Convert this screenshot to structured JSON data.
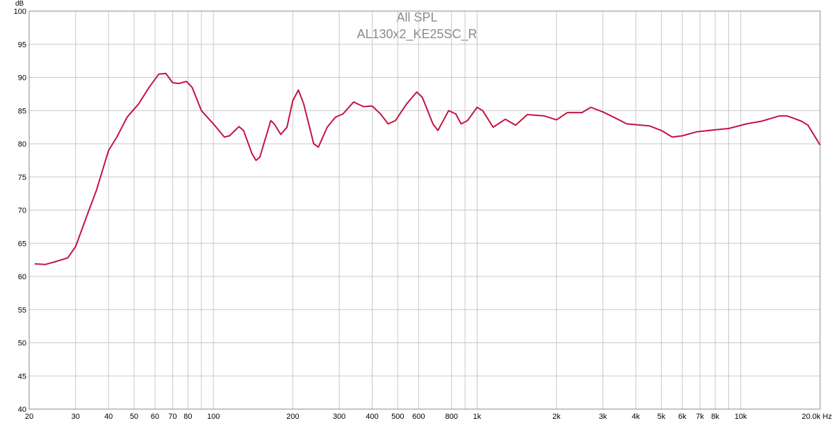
{
  "chart_data": {
    "type": "line",
    "title": "All SPL",
    "subtitle": "AL130x2_KE25SC_R",
    "y_label": "dB",
    "log_x": true,
    "grid": true,
    "xlim": [
      20,
      20000
    ],
    "ylim": [
      40,
      100
    ],
    "xticks": [
      20,
      30,
      40,
      50,
      60,
      70,
      80,
      {
        "value": 90,
        "label": null
      },
      100,
      200,
      300,
      400,
      500,
      600,
      800,
      {
        "value": 900,
        "label": null
      },
      {
        "value": 1000,
        "label": "1k"
      },
      {
        "value": 2000,
        "label": "2k"
      },
      {
        "value": 3000,
        "label": "3k"
      },
      {
        "value": 4000,
        "label": "4k"
      },
      {
        "value": 5000,
        "label": "5k"
      },
      {
        "value": 6000,
        "label": "6k"
      },
      {
        "value": 7000,
        "label": "7k"
      },
      {
        "value": 8000,
        "label": "8k"
      },
      {
        "value": 9000,
        "label": null
      },
      {
        "value": 10000,
        "label": "10k"
      },
      {
        "value": 20000,
        "label": "20.0k Hz"
      }
    ],
    "yticks": [
      40,
      45,
      50,
      55,
      60,
      65,
      70,
      75,
      80,
      85,
      90,
      95,
      100
    ],
    "series": [
      {
        "name": "AL130x2_KE25SC_R",
        "color": "#c4123f",
        "x": [
          21,
          23,
          25,
          28,
          30,
          33,
          36,
          40,
          43,
          47,
          52,
          57,
          62,
          66,
          70,
          74,
          79,
          83,
          90,
          100,
          110,
          115,
          125,
          130,
          140,
          145,
          150,
          165,
          170,
          180,
          190,
          200,
          210,
          220,
          240,
          250,
          270,
          290,
          310,
          340,
          370,
          400,
          430,
          460,
          490,
          540,
          590,
          620,
          680,
          710,
          780,
          830,
          870,
          920,
          1000,
          1050,
          1150,
          1280,
          1400,
          1550,
          1800,
          2000,
          2200,
          2500,
          2700,
          3000,
          3300,
          3700,
          4500,
          5000,
          5500,
          6000,
          6800,
          8000,
          9000,
          10500,
          12000,
          14000,
          15000,
          17000,
          18000,
          20000
        ],
        "values": [
          61.9,
          61.8,
          62.2,
          62.8,
          64.5,
          69,
          73,
          79,
          81,
          84,
          86,
          88.5,
          90.5,
          90.6,
          89.2,
          89.1,
          89.4,
          88.5,
          85,
          83,
          81,
          81.2,
          82.6,
          82,
          78.5,
          77.5,
          78,
          83.5,
          83,
          81.4,
          82.5,
          86.5,
          88.1,
          86,
          80,
          79.5,
          82.5,
          84,
          84.5,
          86.3,
          85.6,
          85.7,
          84.5,
          83,
          83.5,
          86,
          87.8,
          87,
          83,
          82,
          85,
          84.5,
          83,
          83.5,
          85.5,
          85,
          82.5,
          83.7,
          82.8,
          84.4,
          84.2,
          83.6,
          84.7,
          84.7,
          85.5,
          84.8,
          84,
          83,
          82.7,
          82,
          81,
          81.2,
          81.8,
          82.1,
          82.3,
          83,
          83.4,
          84.2,
          84.2,
          83.4,
          82.8,
          79.8
        ]
      }
    ]
  }
}
